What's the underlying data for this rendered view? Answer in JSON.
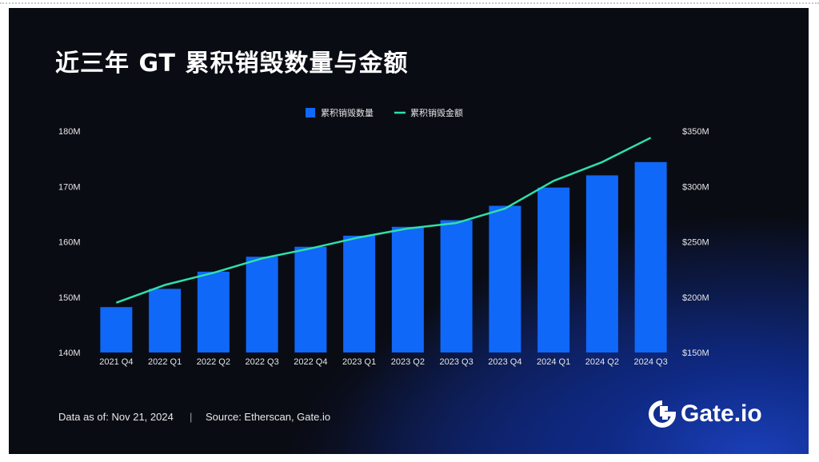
{
  "title": "近三年 GT 累积销毁数量与金额",
  "footer": {
    "date": "Data as of: Nov 21, 2024",
    "separator": "|",
    "source": "Source: Etherscan, Gate.io"
  },
  "logo": {
    "text": "Gate.io",
    "icon": "gate-logo-icon"
  },
  "colors": {
    "bar": "#1068f8",
    "line": "#2fe0a8",
    "background": "#0a0c14",
    "text": "#ffffff"
  },
  "chart_data": {
    "type": "bar",
    "title": "近三年 GT 累积销毁数量与金额",
    "legend_position": "top-center",
    "grid": false,
    "categories": [
      "2021 Q4",
      "2022 Q1",
      "2022 Q2",
      "2022 Q3",
      "2022 Q4",
      "2023 Q1",
      "2023 Q2",
      "2023 Q3",
      "2023 Q4",
      "2024 Q1",
      "2024 Q2",
      "2024 Q3"
    ],
    "series": [
      {
        "name": "累积销毁数量",
        "type": "bar",
        "axis": "left",
        "values": [
          148.2,
          151.5,
          154.6,
          157.3,
          159.1,
          161.1,
          162.7,
          163.9,
          166.5,
          169.8,
          172.0,
          174.4
        ]
      },
      {
        "name": "累积销毁金额",
        "type": "line",
        "axis": "right",
        "values": [
          195,
          211,
          222,
          235,
          244,
          254,
          262,
          267,
          280,
          305,
          322,
          344
        ]
      }
    ],
    "y_left": {
      "ylim": [
        140,
        180
      ],
      "ticks": [
        "140M",
        "150M",
        "160M",
        "170M",
        "180M"
      ],
      "tick_values": [
        140,
        150,
        160,
        170,
        180
      ]
    },
    "y_right": {
      "ylim": [
        150,
        350
      ],
      "ticks": [
        "$150M",
        "$200M",
        "$250M",
        "$300M",
        "$350M"
      ],
      "tick_values": [
        150,
        200,
        250,
        300,
        350
      ]
    }
  }
}
